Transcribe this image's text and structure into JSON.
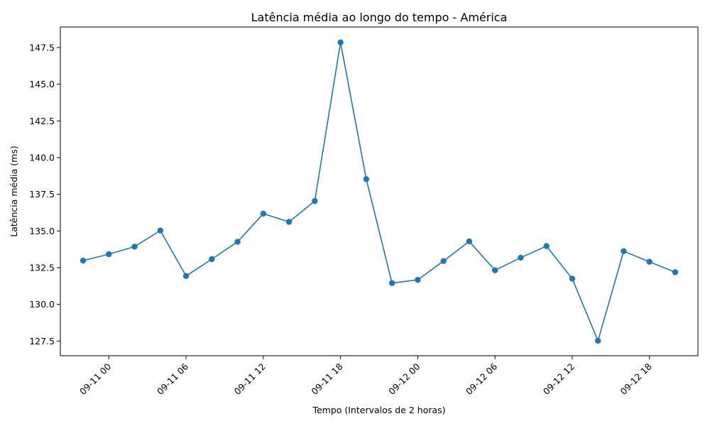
{
  "chart_data": {
    "type": "line",
    "title": "Latência média ao longo do tempo - América",
    "xlabel": "Tempo (Intervalos de 2 horas)",
    "ylabel": "Latência média (ms)",
    "x": [
      "2024-09-10 22:00",
      "2024-09-11 00:00",
      "2024-09-11 02:00",
      "2024-09-11 04:00",
      "2024-09-11 06:00",
      "2024-09-11 08:00",
      "2024-09-11 10:00",
      "2024-09-11 12:00",
      "2024-09-11 14:00",
      "2024-09-11 16:00",
      "2024-09-11 18:00",
      "2024-09-11 20:00",
      "2024-09-11 22:00",
      "2024-09-12 00:00",
      "2024-09-12 02:00",
      "2024-09-12 04:00",
      "2024-09-12 06:00",
      "2024-09-12 08:00",
      "2024-09-12 10:00",
      "2024-09-12 12:00",
      "2024-09-12 14:00",
      "2024-09-12 16:00",
      "2024-09-12 18:00",
      "2024-09-12 20:00"
    ],
    "series": [
      {
        "values": [
          132.98,
          133.42,
          133.93,
          135.03,
          131.93,
          133.08,
          134.26,
          136.18,
          135.62,
          137.04,
          147.85,
          138.53,
          131.45,
          131.67,
          132.95,
          134.29,
          132.32,
          133.18,
          133.97,
          131.75,
          127.52,
          133.62,
          132.9,
          132.19
        ]
      }
    ],
    "x_ticks": [
      "2024-09-11 00:00",
      "2024-09-11 06:00",
      "2024-09-11 12:00",
      "2024-09-11 18:00",
      "2024-09-12 00:00",
      "2024-09-12 06:00",
      "2024-09-12 12:00",
      "2024-09-12 18:00"
    ],
    "x_tick_labels": [
      "09-11 00",
      "09-11 06",
      "09-11 12",
      "09-11 18",
      "09-12 00",
      "09-12 06",
      "09-12 12",
      "09-12 18"
    ],
    "xlim": [
      "2024-09-10 20:14",
      "2024-09-12 21:46"
    ],
    "y_ticks": [
      127.5,
      130.0,
      132.5,
      135.0,
      137.5,
      140.0,
      142.5,
      145.0,
      147.5
    ],
    "y_tick_labels": [
      "127.5",
      "130.0",
      "132.5",
      "135.0",
      "137.5",
      "140.0",
      "142.5",
      "145.0",
      "147.5"
    ],
    "ylim": [
      126.5,
      148.9
    ],
    "color": "#1f77b4",
    "marker": "circle",
    "grid": false,
    "legend": false
  }
}
